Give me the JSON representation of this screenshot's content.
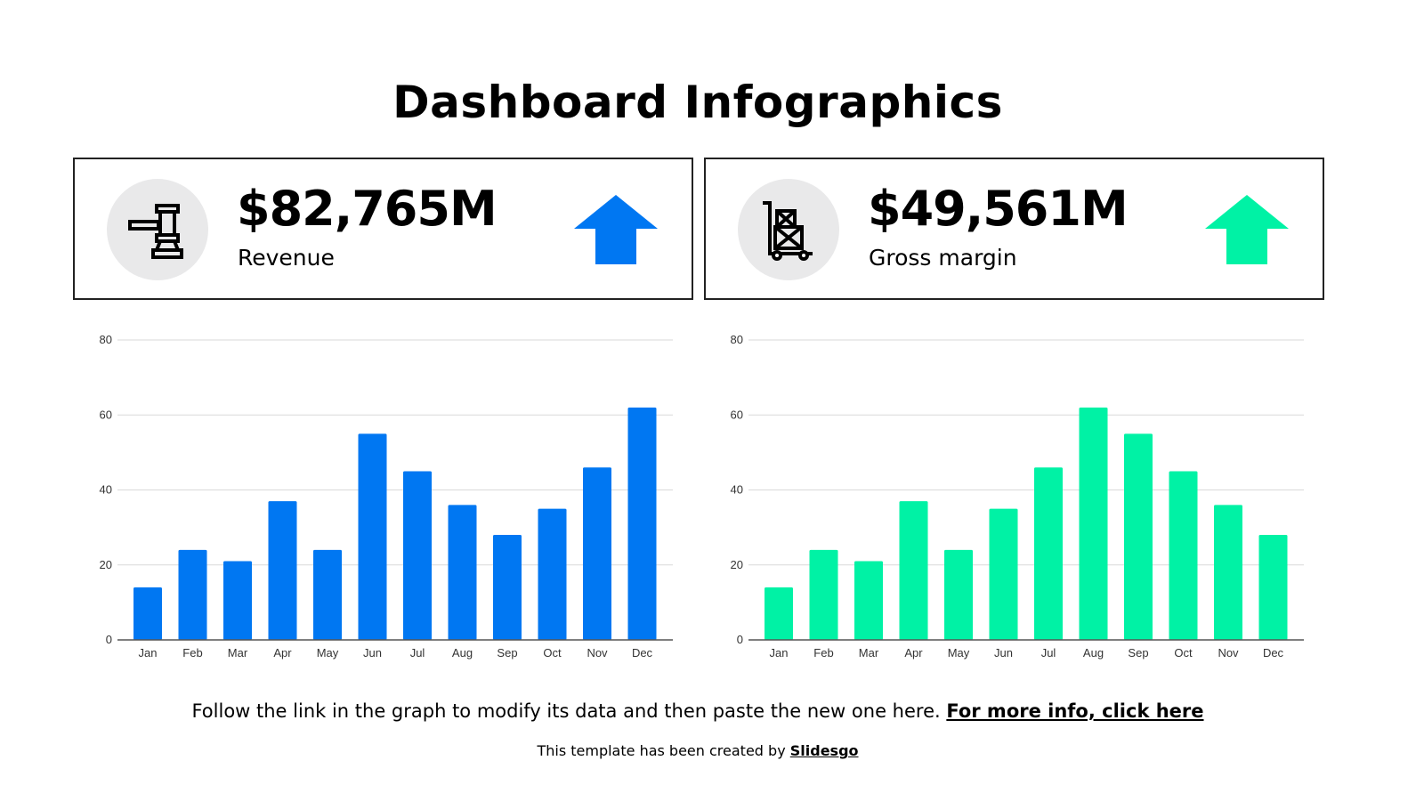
{
  "title": "Dashboard Infographics",
  "cards": [
    {
      "value": "$82,765M",
      "label": "Revenue",
      "icon": "gavel-icon",
      "trend": "up",
      "color": "#0077f2"
    },
    {
      "value": "$49,561M",
      "label": "Gross margin",
      "icon": "hand-truck-icon",
      "trend": "up",
      "color": "#00f2a5"
    }
  ],
  "chart_data": [
    {
      "type": "bar",
      "categories": [
        "Jan",
        "Feb",
        "Mar",
        "Apr",
        "May",
        "Jun",
        "Jul",
        "Aug",
        "Sep",
        "Oct",
        "Nov",
        "Dec"
      ],
      "values": [
        14,
        24,
        21,
        37,
        24,
        55,
        45,
        36,
        28,
        35,
        46,
        62
      ],
      "ylim": [
        0,
        80
      ],
      "yticks": [
        0,
        20,
        40,
        60,
        80
      ],
      "grid": true,
      "color": "#0077f2"
    },
    {
      "type": "bar",
      "categories": [
        "Jan",
        "Feb",
        "Mar",
        "Apr",
        "May",
        "Jun",
        "Jul",
        "Aug",
        "Sep",
        "Oct",
        "Nov",
        "Dec"
      ],
      "values": [
        14,
        24,
        21,
        37,
        24,
        35,
        46,
        62,
        55,
        45,
        36,
        28
      ],
      "ylim": [
        0,
        80
      ],
      "yticks": [
        0,
        20,
        40,
        60,
        80
      ],
      "grid": true,
      "color": "#00f2a5"
    }
  ],
  "footer": {
    "note": "Follow the link in the graph to modify its data and then paste the new one here. ",
    "link": "For more info, click here",
    "credit": "This template has been created by ",
    "credit_link": "Slidesgo"
  }
}
